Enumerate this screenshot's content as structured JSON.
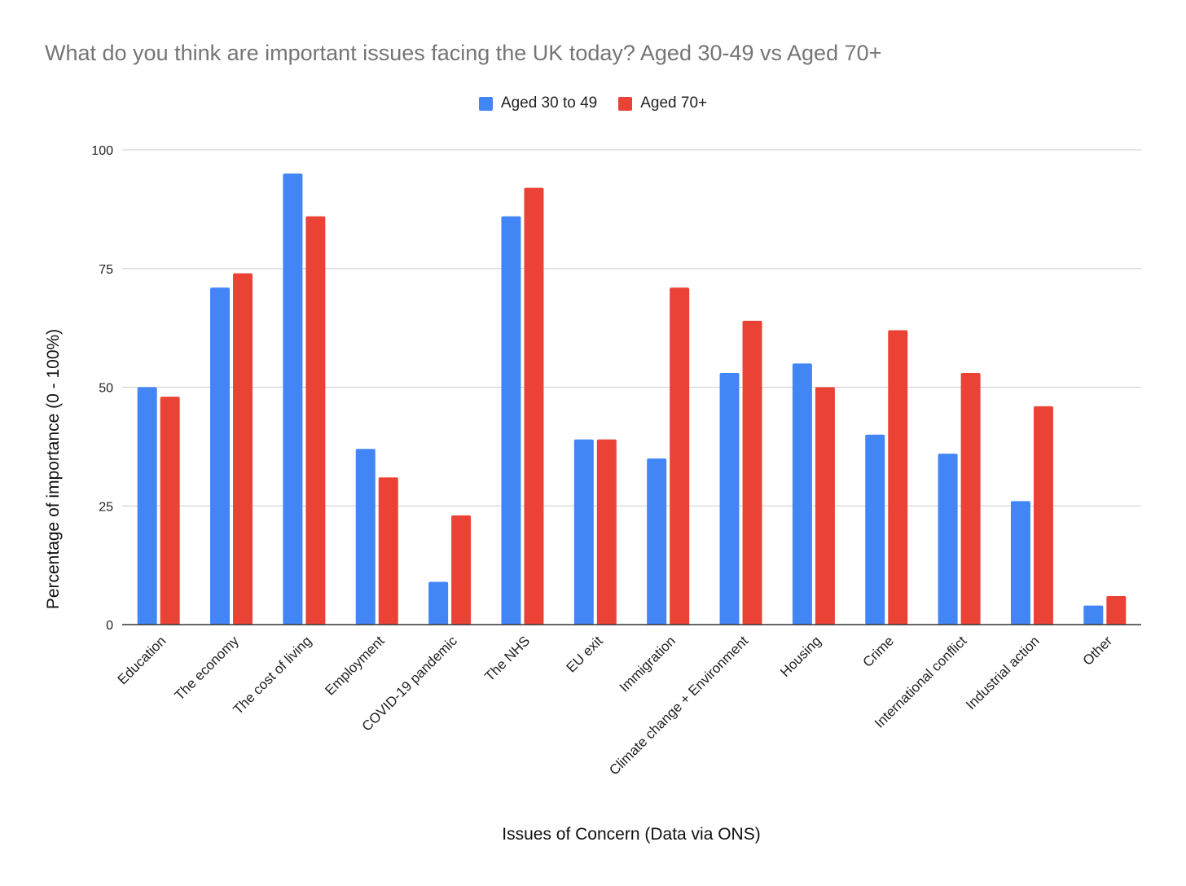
{
  "chart_data": {
    "type": "bar",
    "title": "What do you think are important issues facing the UK today? Aged 30-49 vs Aged 70+",
    "xlabel": "Issues of Concern (Data via ONS)",
    "ylabel": "Percentage of importance (0 - 100%)",
    "ylim": [
      0,
      100
    ],
    "yticks": [
      0,
      25,
      50,
      75,
      100
    ],
    "grid": true,
    "legend_position": "top-center",
    "categories": [
      "Education",
      "The economy",
      "The cost of living",
      "Employment",
      "COVID-19 pandemic",
      "The NHS",
      "EU exit",
      "Immigration",
      "Climate change + Environment",
      "Housing",
      "Crime",
      "International conflict",
      "Industrial action",
      "Other"
    ],
    "series": [
      {
        "name": "Aged 30 to 49",
        "color": "#4285f4",
        "values": [
          50,
          71,
          95,
          37,
          9,
          86,
          39,
          35,
          53,
          55,
          40,
          36,
          26,
          4
        ]
      },
      {
        "name": "Aged 70+",
        "color": "#ea4335",
        "values": [
          48,
          74,
          86,
          31,
          23,
          92,
          39,
          71,
          64,
          50,
          62,
          53,
          46,
          6
        ]
      }
    ]
  }
}
